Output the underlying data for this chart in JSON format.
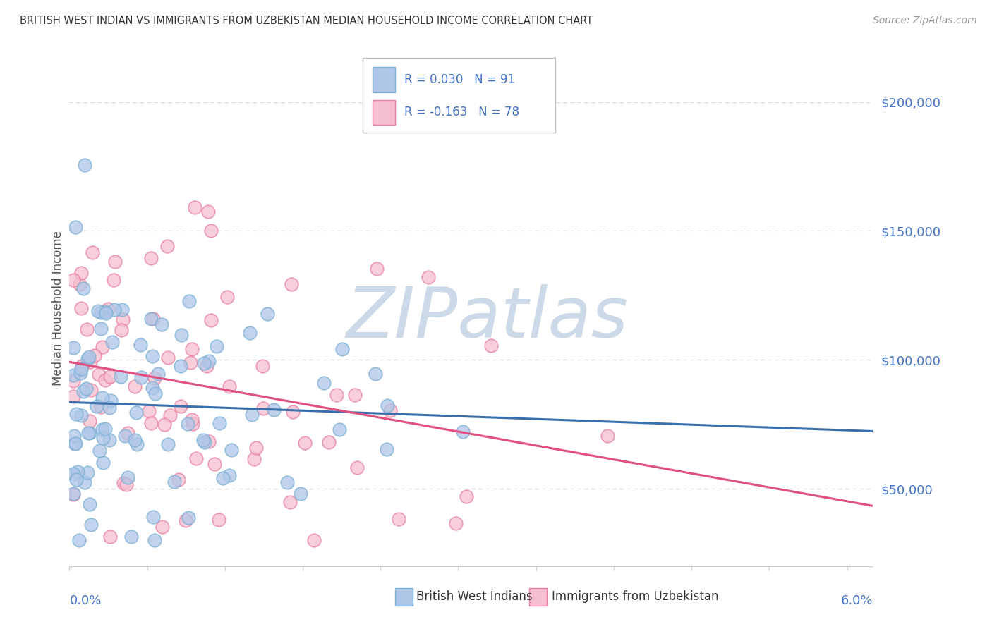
{
  "title": "BRITISH WEST INDIAN VS IMMIGRANTS FROM UZBEKISTAN MEDIAN HOUSEHOLD INCOME CORRELATION CHART",
  "source": "Source: ZipAtlas.com",
  "ylabel": "Median Household Income",
  "watermark": "ZIPatlas",
  "series1": {
    "label": "British West Indians",
    "color": "#aec6e8",
    "edge_color": "#7bafd4",
    "line_color": "#3a6fad",
    "R": 0.03,
    "N": 91
  },
  "series2": {
    "label": "Immigrants from Uzbekistan",
    "color": "#f5bece",
    "edge_color": "#e87fa0",
    "line_color": "#e05080",
    "R": -0.163,
    "N": 78
  },
  "xlim": [
    0.0,
    0.062
  ],
  "ylim": [
    20000,
    220000
  ],
  "yticks": [
    50000,
    100000,
    150000,
    200000
  ],
  "ytick_labels": [
    "$50,000",
    "$100,000",
    "$150,000",
    "$200,000"
  ],
  "title_color": "#333333",
  "source_color": "#999999",
  "text_color": "#4472c4",
  "legend_color": "#4472c4",
  "watermark_color": "#ccd9e8",
  "background_color": "#ffffff",
  "grid_color": "#d8d8d8"
}
